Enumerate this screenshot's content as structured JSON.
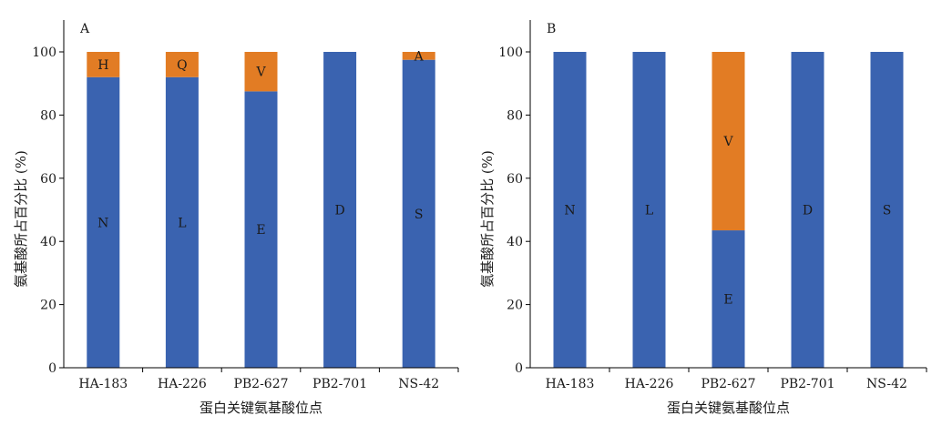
{
  "colors": {
    "series_primary": "#3a63b0",
    "series_secondary": "#e27c24",
    "axis": "#000000",
    "text": "#1a1a1a"
  },
  "chart_data": [
    {
      "type": "bar",
      "stacked": true,
      "panel_label": "A",
      "xlabel": "蛋白关键氨基酸位点",
      "ylabel": "氨基酸所占百分比 (%)",
      "ylim": [
        0,
        100
      ],
      "yticks": [
        0,
        20,
        40,
        60,
        80,
        100
      ],
      "grid": false,
      "legend": "none",
      "categories": [
        "HA-183",
        "HA-226",
        "PB2-627",
        "PB2-701",
        "NS-42"
      ],
      "series": [
        {
          "values": [
            92,
            92,
            87.5,
            100,
            97.5
          ],
          "labels": [
            "N",
            "L",
            "E",
            "D",
            "S"
          ]
        },
        {
          "values": [
            8,
            8,
            12.5,
            0,
            2.5
          ],
          "labels": [
            "H",
            "Q",
            "V",
            "",
            "A"
          ]
        }
      ]
    },
    {
      "type": "bar",
      "stacked": true,
      "panel_label": "B",
      "xlabel": "蛋白关键氨基酸位点",
      "ylabel": "氨基酸所占百分比 (%)",
      "ylim": [
        0,
        100
      ],
      "yticks": [
        0,
        20,
        40,
        60,
        80,
        100
      ],
      "grid": false,
      "legend": "none",
      "categories": [
        "HA-183",
        "HA-226",
        "PB2-627",
        "PB2-701",
        "NS-42"
      ],
      "series": [
        {
          "values": [
            100,
            100,
            43.5,
            100,
            100
          ],
          "labels": [
            "N",
            "L",
            "E",
            "D",
            "S"
          ]
        },
        {
          "values": [
            0,
            0,
            56.5,
            0,
            0
          ],
          "labels": [
            "",
            "",
            "V",
            "",
            ""
          ]
        }
      ]
    }
  ]
}
